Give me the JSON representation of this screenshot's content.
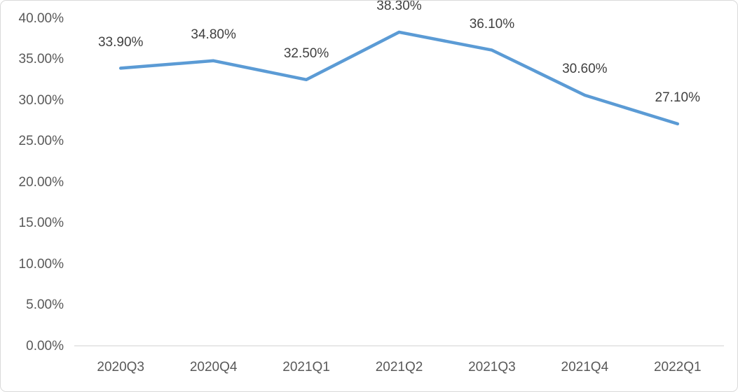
{
  "chart_data": {
    "type": "line",
    "title": "",
    "xlabel": "",
    "ylabel": "",
    "categories": [
      "2020Q3",
      "2020Q4",
      "2021Q1",
      "2021Q2",
      "2021Q3",
      "2021Q4",
      "2022Q1"
    ],
    "values": [
      33.9,
      34.8,
      32.5,
      38.3,
      36.1,
      30.6,
      27.1
    ],
    "data_labels": [
      "33.90%",
      "34.80%",
      "32.50%",
      "38.30%",
      "36.10%",
      "30.60%",
      "27.10%"
    ],
    "y_tick_labels": [
      "40.00%",
      "35.00%",
      "30.00%",
      "25.00%",
      "20.00%",
      "15.00%",
      "10.00%",
      "5.00%",
      "0.00%"
    ],
    "ylim": [
      0,
      40
    ],
    "grid": false,
    "legend_position": "none",
    "colors": {
      "line": "#5B9BD5",
      "axis_line": "#d9d9d9",
      "tick_text": "#595959",
      "data_label_text": "#404040",
      "frame_border": "#d9d9d9",
      "background": "#ffffff"
    }
  }
}
